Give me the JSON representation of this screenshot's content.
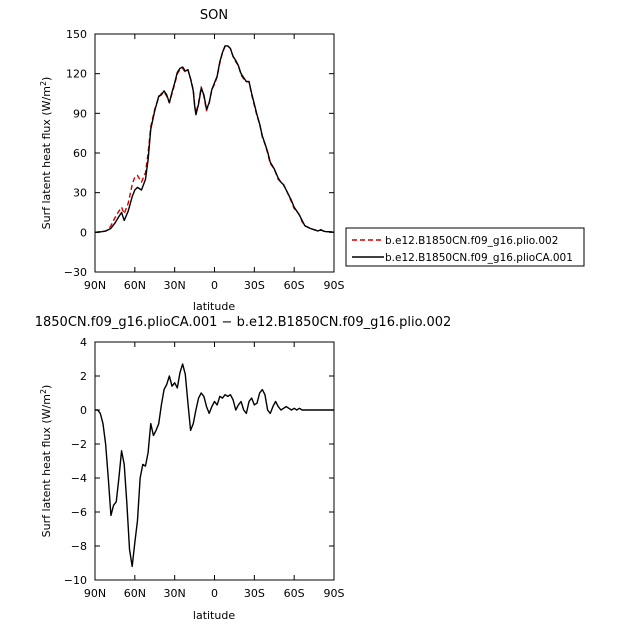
{
  "chart_data": [
    {
      "type": "line",
      "title": "SON",
      "xlabel": "latitude",
      "ylabel": "Surf latent heat flux (W/m²)",
      "ylabel_main": "Surf latent heat flux (W/m",
      "ylabel_sup": "2",
      "ylabel_close": ")",
      "xlim": [
        90,
        -90
      ],
      "ylim": [
        -30,
        150
      ],
      "x_ticks": [
        90,
        60,
        30,
        0,
        -30,
        -60,
        -90
      ],
      "x_tick_labels": [
        "90N",
        "60N",
        "30N",
        "0",
        "30S",
        "60S",
        "90S"
      ],
      "y_ticks": [
        -30,
        0,
        30,
        60,
        90,
        120,
        150
      ],
      "y_tick_labels": [
        "−30",
        "0",
        "30",
        "60",
        "90",
        "120",
        "150"
      ],
      "grid": false,
      "legend_placement": "right",
      "series": [
        {
          "name": "b.e12.B1850CN.f09_g16.plio.002",
          "color": "#cc0000",
          "dash": "dashed",
          "x": [
            90,
            85,
            82,
            80,
            78,
            75,
            72,
            70,
            68,
            65,
            62,
            60,
            58,
            55,
            52,
            50,
            48,
            45,
            42,
            40,
            38,
            36,
            34,
            32,
            30,
            28,
            26,
            24,
            22,
            20,
            18,
            16,
            15,
            14,
            12,
            10,
            8,
            6,
            4,
            2,
            0,
            -2,
            -4,
            -6,
            -8,
            -10,
            -12,
            -14,
            -16,
            -18,
            -20,
            -22,
            -24,
            -26,
            -28,
            -30,
            -32,
            -34,
            -36,
            -38,
            -40,
            -42,
            -45,
            -48,
            -50,
            -52,
            -55,
            -58,
            -60,
            -62,
            -64,
            -66,
            -68,
            -70,
            -72,
            -75,
            -78,
            -80,
            -82,
            -84,
            -86,
            -88,
            -90
          ],
          "y": [
            0,
            0.5,
            1,
            2,
            5,
            11,
            16,
            19,
            14,
            22,
            36,
            42,
            43,
            38,
            45,
            60,
            80,
            93,
            102,
            105,
            106,
            103,
            98,
            105,
            112,
            120,
            123,
            124,
            121,
            123,
            116,
            108,
            97,
            90,
            98,
            110,
            103,
            92,
            98,
            108,
            112,
            118,
            128,
            136,
            141,
            141,
            139,
            133,
            129,
            126,
            119,
            116,
            114,
            114,
            104,
            96,
            88,
            82,
            72,
            67,
            60,
            52,
            48,
            40,
            38,
            36,
            30,
            23,
            18,
            16,
            13,
            8,
            5,
            4,
            3,
            2,
            1,
            2,
            1,
            0.5,
            0.5,
            0.3,
            0
          ]
        },
        {
          "name": "b.e12.B1850CN.f09_g16.plioCA.001",
          "color": "#000000",
          "dash": "solid",
          "x": [
            90,
            85,
            82,
            80,
            78,
            75,
            72,
            70,
            68,
            65,
            62,
            60,
            58,
            55,
            52,
            50,
            48,
            45,
            42,
            40,
            38,
            36,
            34,
            32,
            30,
            28,
            26,
            24,
            22,
            20,
            18,
            16,
            15,
            14,
            12,
            10,
            8,
            6,
            4,
            2,
            0,
            -2,
            -4,
            -6,
            -8,
            -10,
            -12,
            -14,
            -16,
            -18,
            -20,
            -22,
            -24,
            -26,
            -28,
            -30,
            -32,
            -34,
            -36,
            -38,
            -40,
            -42,
            -45,
            -48,
            -50,
            -52,
            -55,
            -58,
            -60,
            -62,
            -64,
            -66,
            -68,
            -70,
            -72,
            -75,
            -78,
            -80,
            -82,
            -84,
            -86,
            -88,
            -90
          ],
          "y": [
            0,
            0.5,
            1,
            2,
            3,
            7,
            12,
            15,
            9,
            16,
            27,
            32,
            34,
            32,
            40,
            55,
            78,
            92,
            103,
            104,
            107,
            104,
            98,
            106,
            113,
            121,
            124,
            125,
            122,
            123,
            116,
            107,
            96,
            89,
            97,
            109,
            104,
            93,
            98,
            108,
            113,
            118,
            129,
            136,
            141,
            141,
            139,
            133,
            130,
            126,
            120,
            117,
            114,
            114,
            105,
            97,
            89,
            82,
            73,
            67,
            61,
            53,
            48,
            41,
            38,
            36,
            30,
            24,
            19,
            16,
            13,
            9,
            5,
            4,
            3,
            2,
            1,
            2,
            1,
            0.5,
            0.5,
            0.3,
            0
          ]
        }
      ]
    },
    {
      "type": "line",
      "title": "1850CN.f09_g16.plioCA.001 − b.e12.B1850CN.f09_g16.plio.002",
      "xlabel": "latitude",
      "ylabel": "Surf latent heat flux (W/m²)",
      "ylabel_main": "Surf latent heat flux (W/m",
      "ylabel_sup": "2",
      "ylabel_close": ")",
      "xlim": [
        90,
        -90
      ],
      "ylim": [
        -10,
        4
      ],
      "x_ticks": [
        90,
        60,
        30,
        0,
        -30,
        -60,
        -90
      ],
      "x_tick_labels": [
        "90N",
        "60N",
        "30N",
        "0",
        "30S",
        "60S",
        "90S"
      ],
      "y_ticks": [
        -10,
        -8,
        -6,
        -4,
        -2,
        0,
        2,
        4
      ],
      "y_tick_labels": [
        "−10",
        "−8",
        "−6",
        "−4",
        "−2",
        "0",
        "2",
        "4"
      ],
      "grid": false,
      "series": [
        {
          "color": "#000000",
          "dash": "solid",
          "x": [
            90,
            88,
            86,
            84,
            82,
            80,
            78,
            76,
            74,
            72,
            70,
            68,
            66,
            64,
            62,
            60,
            58,
            56,
            54,
            52,
            50,
            48,
            46,
            44,
            42,
            40,
            38,
            36,
            34,
            32,
            30,
            28,
            26,
            24,
            22,
            20,
            18,
            16,
            14,
            12,
            10,
            8,
            6,
            4,
            2,
            0,
            -2,
            -4,
            -6,
            -8,
            -10,
            -12,
            -14,
            -16,
            -18,
            -20,
            -22,
            -24,
            -26,
            -28,
            -30,
            -32,
            -34,
            -36,
            -38,
            -40,
            -42,
            -44,
            -46,
            -48,
            -50,
            -52,
            -54,
            -56,
            -58,
            -60,
            -62,
            -64,
            -66,
            -68,
            -70,
            -72,
            -74,
            -76,
            -78,
            -80,
            -82,
            -84,
            -86,
            -88,
            -90
          ],
          "y": [
            0,
            0,
            -0.2,
            -0.8,
            -2,
            -4,
            -6.2,
            -5.6,
            -5.4,
            -4,
            -2.4,
            -3.2,
            -5.5,
            -8.2,
            -9.2,
            -7.8,
            -6.5,
            -4,
            -3.2,
            -3.3,
            -2.5,
            -0.8,
            -1.5,
            -1.2,
            -0.8,
            0.3,
            1.2,
            1.5,
            2,
            1.4,
            1.6,
            1.3,
            2.2,
            2.7,
            2.1,
            0.4,
            -1.2,
            -0.8,
            0,
            0.7,
            1,
            0.8,
            0.2,
            -0.2,
            0.2,
            0.5,
            0.3,
            0.8,
            0.7,
            0.9,
            0.8,
            0.9,
            0.6,
            0,
            0.3,
            0.5,
            0,
            -0.2,
            0.5,
            0.7,
            0.3,
            0.4,
            1,
            1.2,
            0.9,
            0,
            -0.2,
            0.2,
            0.5,
            0.2,
            0,
            0.1,
            0.2,
            0.1,
            0,
            0.1,
            0,
            0.1,
            0,
            0,
            0,
            0,
            0,
            0,
            0,
            0,
            0,
            0,
            0,
            0,
            0
          ]
        }
      ]
    }
  ]
}
